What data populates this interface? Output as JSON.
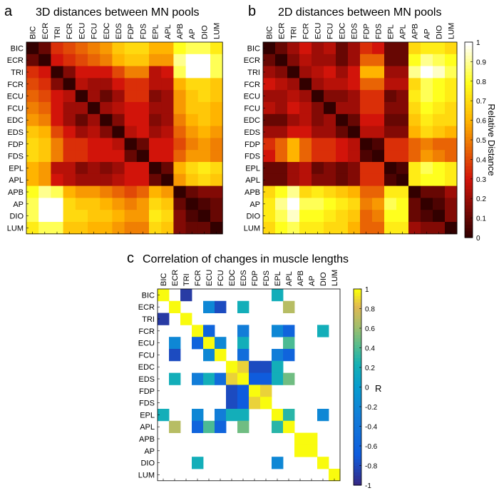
{
  "muscles": [
    "BIC",
    "ECR",
    "TRI",
    "FCR",
    "ECU",
    "FCU",
    "EDC",
    "EDS",
    "FDP",
    "FDS",
    "EPL",
    "APL",
    "APB",
    "AP",
    "DIO",
    "LUM"
  ],
  "chart_data": [
    {
      "id": "a",
      "type": "heatmap",
      "panel_label": "a",
      "title": "3D distances between MN pools",
      "values": [
        [
          0.0,
          0.1,
          0.35,
          0.4,
          0.45,
          0.5,
          0.55,
          0.65,
          0.7,
          0.7,
          0.6,
          0.6,
          0.8,
          0.85,
          0.85,
          0.75
        ],
        [
          0.1,
          0.0,
          0.3,
          0.35,
          0.4,
          0.45,
          0.5,
          0.6,
          0.65,
          0.65,
          0.55,
          0.55,
          0.9,
          1.0,
          1.0,
          0.85
        ],
        [
          0.35,
          0.3,
          0.0,
          0.15,
          0.3,
          0.3,
          0.3,
          0.4,
          0.5,
          0.5,
          0.25,
          0.3,
          0.85,
          1.0,
          1.0,
          0.85
        ],
        [
          0.4,
          0.35,
          0.15,
          0.0,
          0.25,
          0.2,
          0.2,
          0.3,
          0.35,
          0.35,
          0.25,
          0.25,
          0.6,
          0.7,
          0.7,
          0.65
        ],
        [
          0.45,
          0.4,
          0.3,
          0.25,
          0.0,
          0.2,
          0.1,
          0.2,
          0.35,
          0.35,
          0.15,
          0.2,
          0.55,
          0.65,
          0.7,
          0.65
        ],
        [
          0.5,
          0.45,
          0.3,
          0.2,
          0.2,
          0.0,
          0.2,
          0.25,
          0.3,
          0.3,
          0.2,
          0.2,
          0.55,
          0.65,
          0.65,
          0.6
        ],
        [
          0.55,
          0.5,
          0.3,
          0.2,
          0.1,
          0.2,
          0.0,
          0.15,
          0.3,
          0.3,
          0.15,
          0.2,
          0.5,
          0.6,
          0.65,
          0.6
        ],
        [
          0.65,
          0.6,
          0.4,
          0.3,
          0.2,
          0.25,
          0.15,
          0.0,
          0.25,
          0.3,
          0.2,
          0.25,
          0.45,
          0.55,
          0.6,
          0.55
        ],
        [
          0.7,
          0.65,
          0.5,
          0.35,
          0.35,
          0.3,
          0.3,
          0.25,
          0.0,
          0.1,
          0.3,
          0.3,
          0.4,
          0.5,
          0.55,
          0.5
        ],
        [
          0.7,
          0.65,
          0.5,
          0.35,
          0.35,
          0.3,
          0.3,
          0.3,
          0.1,
          0.0,
          0.3,
          0.3,
          0.45,
          0.55,
          0.55,
          0.5
        ],
        [
          0.6,
          0.55,
          0.25,
          0.25,
          0.15,
          0.2,
          0.15,
          0.2,
          0.3,
          0.3,
          0.0,
          0.1,
          0.6,
          0.7,
          0.75,
          0.7
        ],
        [
          0.6,
          0.55,
          0.3,
          0.25,
          0.2,
          0.2,
          0.2,
          0.25,
          0.3,
          0.3,
          0.1,
          0.0,
          0.55,
          0.65,
          0.7,
          0.65
        ],
        [
          0.8,
          0.9,
          0.85,
          0.6,
          0.55,
          0.55,
          0.5,
          0.45,
          0.4,
          0.45,
          0.6,
          0.55,
          0.0,
          0.1,
          0.15,
          0.15
        ],
        [
          0.85,
          1.0,
          1.0,
          0.7,
          0.65,
          0.65,
          0.6,
          0.55,
          0.5,
          0.55,
          0.7,
          0.65,
          0.1,
          0.0,
          0.05,
          0.1
        ],
        [
          0.85,
          1.0,
          1.0,
          0.7,
          0.7,
          0.65,
          0.65,
          0.6,
          0.55,
          0.55,
          0.75,
          0.7,
          0.15,
          0.05,
          0.0,
          0.1
        ],
        [
          0.75,
          0.85,
          0.85,
          0.65,
          0.65,
          0.6,
          0.6,
          0.55,
          0.5,
          0.5,
          0.7,
          0.65,
          0.15,
          0.1,
          0.1,
          0.0
        ]
      ]
    },
    {
      "id": "b",
      "type": "heatmap",
      "panel_label": "b",
      "title": "2D distances between MN pools",
      "colorbar": {
        "label": "Relative Distance",
        "range": [
          0,
          1
        ],
        "ticks": [
          "0",
          "0.1",
          "0.2",
          "0.3",
          "0.4",
          "0.5",
          "0.6",
          "0.7",
          "0.8",
          "0.9",
          "1"
        ]
      },
      "values": [
        [
          0.0,
          0.1,
          0.2,
          0.3,
          0.2,
          0.25,
          0.1,
          0.2,
          0.35,
          0.3,
          0.1,
          0.1,
          0.7,
          0.75,
          0.75,
          0.7
        ],
        [
          0.1,
          0.0,
          0.15,
          0.25,
          0.2,
          0.2,
          0.1,
          0.2,
          0.45,
          0.45,
          0.1,
          0.1,
          0.8,
          0.9,
          0.85,
          0.8
        ],
        [
          0.2,
          0.15,
          0.0,
          0.2,
          0.25,
          0.3,
          0.2,
          0.3,
          0.6,
          0.6,
          0.2,
          0.2,
          0.9,
          1.0,
          0.95,
          0.85
        ],
        [
          0.3,
          0.25,
          0.2,
          0.0,
          0.2,
          0.25,
          0.25,
          0.3,
          0.45,
          0.45,
          0.25,
          0.25,
          0.7,
          0.85,
          0.8,
          0.75
        ],
        [
          0.2,
          0.2,
          0.25,
          0.2,
          0.0,
          0.15,
          0.15,
          0.2,
          0.35,
          0.35,
          0.1,
          0.15,
          0.75,
          0.85,
          0.8,
          0.75
        ],
        [
          0.25,
          0.2,
          0.3,
          0.25,
          0.15,
          0.0,
          0.2,
          0.2,
          0.35,
          0.35,
          0.15,
          0.15,
          0.7,
          0.8,
          0.75,
          0.7
        ],
        [
          0.1,
          0.1,
          0.2,
          0.25,
          0.15,
          0.2,
          0.0,
          0.1,
          0.3,
          0.3,
          0.1,
          0.1,
          0.65,
          0.75,
          0.7,
          0.7
        ],
        [
          0.2,
          0.2,
          0.3,
          0.3,
          0.2,
          0.2,
          0.1,
          0.0,
          0.25,
          0.25,
          0.15,
          0.15,
          0.6,
          0.7,
          0.65,
          0.6
        ],
        [
          0.35,
          0.45,
          0.6,
          0.45,
          0.35,
          0.35,
          0.3,
          0.25,
          0.0,
          0.05,
          0.35,
          0.35,
          0.45,
          0.5,
          0.45,
          0.45
        ],
        [
          0.3,
          0.45,
          0.6,
          0.45,
          0.35,
          0.35,
          0.3,
          0.25,
          0.05,
          0.0,
          0.35,
          0.35,
          0.45,
          0.55,
          0.5,
          0.45
        ],
        [
          0.1,
          0.1,
          0.2,
          0.25,
          0.1,
          0.15,
          0.1,
          0.15,
          0.35,
          0.35,
          0.0,
          0.05,
          0.75,
          0.85,
          0.8,
          0.75
        ],
        [
          0.1,
          0.1,
          0.2,
          0.25,
          0.15,
          0.15,
          0.1,
          0.15,
          0.35,
          0.35,
          0.05,
          0.0,
          0.75,
          0.8,
          0.8,
          0.75
        ],
        [
          0.7,
          0.8,
          0.9,
          0.7,
          0.75,
          0.7,
          0.65,
          0.6,
          0.45,
          0.45,
          0.75,
          0.75,
          0.0,
          0.1,
          0.1,
          0.2
        ],
        [
          0.75,
          0.9,
          1.0,
          0.85,
          0.85,
          0.8,
          0.75,
          0.7,
          0.5,
          0.55,
          0.85,
          0.8,
          0.1,
          0.0,
          0.05,
          0.15
        ],
        [
          0.75,
          0.85,
          0.95,
          0.8,
          0.8,
          0.75,
          0.7,
          0.65,
          0.45,
          0.5,
          0.8,
          0.8,
          0.1,
          0.05,
          0.0,
          0.15
        ],
        [
          0.7,
          0.8,
          0.85,
          0.75,
          0.75,
          0.7,
          0.7,
          0.6,
          0.45,
          0.45,
          0.75,
          0.75,
          0.2,
          0.15,
          0.15,
          0.0
        ]
      ]
    },
    {
      "id": "c",
      "type": "heatmap",
      "panel_label": "c",
      "title": "Correlation of changes in muscle lengths",
      "colorbar": {
        "label": "R",
        "range": [
          -1,
          1
        ],
        "ticks": [
          "1",
          "0.8",
          "0.6",
          "0.4",
          "0.2",
          "0",
          "-0.2",
          "-0.4",
          "-0.6",
          "-0.8",
          "-1"
        ]
      },
      "values": [
        [
          1,
          0,
          -0.9,
          0,
          0,
          0,
          0,
          0,
          0,
          0,
          0.2,
          0,
          0,
          0,
          0,
          0
        ],
        [
          0,
          1,
          0,
          0,
          -0.2,
          -0.8,
          0,
          0.2,
          0,
          0,
          0,
          0.7,
          0,
          0,
          0,
          0
        ],
        [
          -0.9,
          0,
          1,
          0,
          0,
          0,
          0,
          0,
          0,
          0,
          0,
          0,
          0,
          0,
          0,
          0
        ],
        [
          0,
          0,
          0,
          1,
          -0.6,
          0,
          0,
          -0.3,
          0,
          0,
          -0.2,
          -0.6,
          0,
          0,
          0.2,
          0
        ],
        [
          0,
          -0.2,
          0,
          -0.6,
          1,
          -0.2,
          0,
          0.2,
          0,
          0,
          0,
          0.4,
          0,
          0,
          0,
          0
        ],
        [
          0,
          -0.8,
          0,
          0,
          -0.2,
          1,
          0,
          -0.5,
          0,
          0,
          -0.3,
          -0.6,
          0,
          0,
          0,
          0
        ],
        [
          0,
          0,
          0,
          0,
          0,
          0,
          1,
          0.9,
          -0.8,
          -0.8,
          0.2,
          0,
          0,
          0,
          0,
          0
        ],
        [
          0,
          0.2,
          0,
          -0.3,
          0.2,
          -0.5,
          0.9,
          1,
          -0.7,
          -0.7,
          0.2,
          0.5,
          0,
          0,
          0,
          0
        ],
        [
          0,
          0,
          0,
          0,
          0,
          0,
          -0.8,
          -0.7,
          1,
          0.9,
          0,
          0,
          0,
          0,
          0,
          0
        ],
        [
          0,
          0,
          0,
          0,
          0,
          0,
          -0.8,
          -0.7,
          0.9,
          1,
          0,
          0,
          0,
          0,
          0,
          0
        ],
        [
          0.2,
          0,
          0,
          -0.2,
          0,
          -0.3,
          0.2,
          0.2,
          0,
          0,
          1,
          0.3,
          0,
          0,
          -0.2,
          0
        ],
        [
          0,
          0.7,
          0,
          -0.6,
          0.4,
          -0.6,
          0,
          0.5,
          0,
          0,
          0.3,
          1,
          0,
          0,
          0,
          0
        ],
        [
          0,
          0,
          0,
          0,
          0,
          0,
          0,
          0,
          0,
          0,
          0,
          0,
          1,
          1,
          0,
          0
        ],
        [
          0,
          0,
          0,
          0,
          0,
          0,
          0,
          0,
          0,
          0,
          0,
          0,
          1,
          1,
          0,
          0
        ],
        [
          0,
          0,
          0,
          0.2,
          0,
          0,
          0,
          0,
          0,
          0,
          -0.2,
          0,
          0,
          0,
          1,
          0
        ],
        [
          0,
          0,
          0,
          0,
          0,
          0,
          0,
          0,
          0,
          0,
          0,
          0,
          0,
          0,
          0,
          1
        ]
      ]
    }
  ]
}
